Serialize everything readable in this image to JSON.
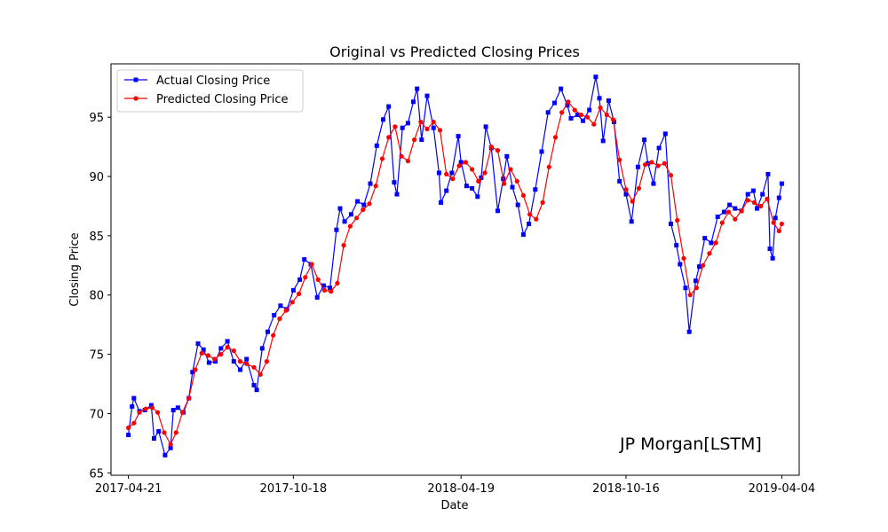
{
  "chart_data": {
    "type": "line",
    "title": "Original vs Predicted Closing Prices",
    "xlabel": "Date",
    "ylabel": "Closing Price",
    "x_range": [
      "2017-04-21",
      "2019-04-04"
    ],
    "xlim": [
      "2017-04-02",
      "2019-04-23"
    ],
    "ylim": [
      64.8,
      99.5
    ],
    "x_ticks": [
      "2017-04-21",
      "2017-10-18",
      "2018-04-19",
      "2018-10-16",
      "2019-04-04"
    ],
    "y_ticks": [
      65,
      70,
      75,
      80,
      85,
      90,
      95
    ],
    "legend": {
      "placement": "top-left"
    },
    "annotation": "JP Morgan[LSTM]",
    "grid": false,
    "series": [
      {
        "name": "Actual Closing Price",
        "color": "#0000ff",
        "marker": "square",
        "points": [
          [
            "2017-04-21",
            68.2
          ],
          [
            "2017-04-25",
            70.6
          ],
          [
            "2017-04-27",
            71.3
          ],
          [
            "2017-05-03",
            70.2
          ],
          [
            "2017-05-09",
            70.3
          ],
          [
            "2017-05-16",
            70.7
          ],
          [
            "2017-05-19",
            67.9
          ],
          [
            "2017-05-24",
            68.5
          ],
          [
            "2017-05-31",
            66.5
          ],
          [
            "2017-06-06",
            67.1
          ],
          [
            "2017-06-09",
            70.3
          ],
          [
            "2017-06-14",
            70.5
          ],
          [
            "2017-06-20",
            70.1
          ],
          [
            "2017-06-26",
            71.3
          ],
          [
            "2017-06-30",
            73.5
          ],
          [
            "2017-07-06",
            75.9
          ],
          [
            "2017-07-12",
            75.4
          ],
          [
            "2017-07-18",
            74.3
          ],
          [
            "2017-07-25",
            74.4
          ],
          [
            "2017-07-31",
            75.5
          ],
          [
            "2017-08-07",
            76.1
          ],
          [
            "2017-08-14",
            74.4
          ],
          [
            "2017-08-21",
            73.7
          ],
          [
            "2017-08-28",
            74.6
          ],
          [
            "2017-09-05",
            72.4
          ],
          [
            "2017-09-08",
            72.0
          ],
          [
            "2017-09-14",
            75.5
          ],
          [
            "2017-09-20",
            76.9
          ],
          [
            "2017-09-27",
            78.3
          ],
          [
            "2017-10-04",
            79.1
          ],
          [
            "2017-10-11",
            78.8
          ],
          [
            "2017-10-18",
            80.4
          ],
          [
            "2017-10-25",
            81.3
          ],
          [
            "2017-10-30",
            83.0
          ],
          [
            "2017-11-06",
            82.6
          ],
          [
            "2017-11-13",
            79.8
          ],
          [
            "2017-11-20",
            80.8
          ],
          [
            "2017-11-27",
            80.6
          ],
          [
            "2017-12-04",
            85.5
          ],
          [
            "2017-12-08",
            87.3
          ],
          [
            "2017-12-13",
            86.2
          ],
          [
            "2017-12-20",
            86.8
          ],
          [
            "2017-12-27",
            87.9
          ],
          [
            "2018-01-03",
            87.6
          ],
          [
            "2018-01-10",
            89.4
          ],
          [
            "2018-01-17",
            92.6
          ],
          [
            "2018-01-24",
            94.8
          ],
          [
            "2018-01-30",
            95.9
          ],
          [
            "2018-02-05",
            89.5
          ],
          [
            "2018-02-08",
            88.5
          ],
          [
            "2018-02-14",
            94.1
          ],
          [
            "2018-02-20",
            94.5
          ],
          [
            "2018-02-26",
            96.3
          ],
          [
            "2018-03-02",
            97.4
          ],
          [
            "2018-03-07",
            93.1
          ],
          [
            "2018-03-13",
            96.8
          ],
          [
            "2018-03-20",
            94.1
          ],
          [
            "2018-03-26",
            90.3
          ],
          [
            "2018-03-28",
            87.8
          ],
          [
            "2018-04-03",
            88.8
          ],
          [
            "2018-04-09",
            90.3
          ],
          [
            "2018-04-16",
            93.4
          ],
          [
            "2018-04-19",
            91.2
          ],
          [
            "2018-04-25",
            89.2
          ],
          [
            "2018-05-01",
            89.0
          ],
          [
            "2018-05-07",
            88.3
          ],
          [
            "2018-05-11",
            89.9
          ],
          [
            "2018-05-16",
            94.2
          ],
          [
            "2018-05-22",
            92.4
          ],
          [
            "2018-05-29",
            87.1
          ],
          [
            "2018-06-04",
            89.8
          ],
          [
            "2018-06-08",
            91.7
          ],
          [
            "2018-06-14",
            89.1
          ],
          [
            "2018-06-20",
            87.6
          ],
          [
            "2018-06-26",
            85.1
          ],
          [
            "2018-07-02",
            86.0
          ],
          [
            "2018-07-09",
            88.9
          ],
          [
            "2018-07-16",
            92.1
          ],
          [
            "2018-07-23",
            95.4
          ],
          [
            "2018-07-30",
            96.2
          ],
          [
            "2018-08-06",
            97.4
          ],
          [
            "2018-08-13",
            96.0
          ],
          [
            "2018-08-17",
            94.9
          ],
          [
            "2018-08-24",
            95.2
          ],
          [
            "2018-08-30",
            94.7
          ],
          [
            "2018-09-06",
            95.6
          ],
          [
            "2018-09-13",
            98.4
          ],
          [
            "2018-09-17",
            96.6
          ],
          [
            "2018-09-21",
            93.0
          ],
          [
            "2018-09-27",
            96.4
          ],
          [
            "2018-10-03",
            94.6
          ],
          [
            "2018-10-09",
            89.6
          ],
          [
            "2018-10-16",
            88.5
          ],
          [
            "2018-10-22",
            86.2
          ],
          [
            "2018-10-29",
            90.8
          ],
          [
            "2018-11-05",
            93.1
          ],
          [
            "2018-11-09",
            91.1
          ],
          [
            "2018-11-15",
            89.4
          ],
          [
            "2018-11-21",
            92.4
          ],
          [
            "2018-11-28",
            93.6
          ],
          [
            "2018-12-04",
            86.0
          ],
          [
            "2018-12-10",
            84.2
          ],
          [
            "2018-12-14",
            82.6
          ],
          [
            "2018-12-20",
            80.6
          ],
          [
            "2018-12-24",
            76.9
          ],
          [
            "2018-12-31",
            81.2
          ],
          [
            "2019-01-04",
            82.4
          ],
          [
            "2019-01-10",
            84.8
          ],
          [
            "2019-01-17",
            84.4
          ],
          [
            "2019-01-24",
            86.6
          ],
          [
            "2019-01-31",
            87.0
          ],
          [
            "2019-02-06",
            87.6
          ],
          [
            "2019-02-12",
            87.3
          ],
          [
            "2019-02-19",
            87.1
          ],
          [
            "2019-02-26",
            88.5
          ],
          [
            "2019-03-04",
            88.8
          ],
          [
            "2019-03-08",
            87.3
          ],
          [
            "2019-03-14",
            88.5
          ],
          [
            "2019-03-20",
            90.2
          ],
          [
            "2019-03-22",
            83.9
          ],
          [
            "2019-03-25",
            83.1
          ],
          [
            "2019-03-28",
            86.5
          ],
          [
            "2019-04-01",
            88.2
          ],
          [
            "2019-04-04",
            89.4
          ]
        ]
      },
      {
        "name": "Predicted Closing Price",
        "color": "#ff0000",
        "marker": "circle",
        "points": [
          [
            "2017-04-21",
            68.8
          ],
          [
            "2017-04-27",
            69.2
          ],
          [
            "2017-05-03",
            70.1
          ],
          [
            "2017-05-10",
            70.4
          ],
          [
            "2017-05-17",
            70.5
          ],
          [
            "2017-05-23",
            70.1
          ],
          [
            "2017-05-30",
            68.4
          ],
          [
            "2017-06-06",
            67.4
          ],
          [
            "2017-06-12",
            68.4
          ],
          [
            "2017-06-19",
            70.1
          ],
          [
            "2017-06-26",
            71.3
          ],
          [
            "2017-07-03",
            73.7
          ],
          [
            "2017-07-10",
            75.1
          ],
          [
            "2017-07-17",
            74.9
          ],
          [
            "2017-07-24",
            74.6
          ],
          [
            "2017-07-31",
            75.0
          ],
          [
            "2017-08-07",
            75.6
          ],
          [
            "2017-08-14",
            75.3
          ],
          [
            "2017-08-21",
            74.4
          ],
          [
            "2017-08-28",
            74.2
          ],
          [
            "2017-09-05",
            73.9
          ],
          [
            "2017-09-12",
            73.3
          ],
          [
            "2017-09-19",
            74.4
          ],
          [
            "2017-09-26",
            76.6
          ],
          [
            "2017-10-03",
            78.0
          ],
          [
            "2017-10-10",
            78.7
          ],
          [
            "2017-10-17",
            79.4
          ],
          [
            "2017-10-24",
            80.1
          ],
          [
            "2017-10-31",
            81.5
          ],
          [
            "2017-11-07",
            82.6
          ],
          [
            "2017-11-14",
            81.3
          ],
          [
            "2017-11-21",
            80.4
          ],
          [
            "2017-11-28",
            80.3
          ],
          [
            "2017-12-05",
            81.0
          ],
          [
            "2017-12-12",
            84.2
          ],
          [
            "2017-12-19",
            85.8
          ],
          [
            "2017-12-26",
            86.5
          ],
          [
            "2018-01-02",
            87.2
          ],
          [
            "2018-01-09",
            87.7
          ],
          [
            "2018-01-16",
            89.2
          ],
          [
            "2018-01-23",
            91.5
          ],
          [
            "2018-01-30",
            93.3
          ],
          [
            "2018-02-06",
            94.2
          ],
          [
            "2018-02-13",
            91.7
          ],
          [
            "2018-02-20",
            91.3
          ],
          [
            "2018-02-27",
            93.1
          ],
          [
            "2018-03-06",
            94.6
          ],
          [
            "2018-03-13",
            94.0
          ],
          [
            "2018-03-20",
            94.6
          ],
          [
            "2018-03-27",
            93.9
          ],
          [
            "2018-04-03",
            90.2
          ],
          [
            "2018-04-10",
            89.8
          ],
          [
            "2018-04-17",
            90.9
          ],
          [
            "2018-04-24",
            91.2
          ],
          [
            "2018-05-01",
            90.6
          ],
          [
            "2018-05-08",
            89.6
          ],
          [
            "2018-05-15",
            90.3
          ],
          [
            "2018-05-22",
            92.5
          ],
          [
            "2018-05-29",
            92.2
          ],
          [
            "2018-06-05",
            89.4
          ],
          [
            "2018-06-12",
            90.6
          ],
          [
            "2018-06-19",
            89.6
          ],
          [
            "2018-06-26",
            88.4
          ],
          [
            "2018-07-03",
            86.8
          ],
          [
            "2018-07-10",
            86.4
          ],
          [
            "2018-07-17",
            87.8
          ],
          [
            "2018-07-24",
            90.8
          ],
          [
            "2018-07-31",
            93.3
          ],
          [
            "2018-08-07",
            95.4
          ],
          [
            "2018-08-14",
            96.3
          ],
          [
            "2018-08-21",
            95.6
          ],
          [
            "2018-08-28",
            95.2
          ],
          [
            "2018-09-04",
            95.0
          ],
          [
            "2018-09-11",
            94.4
          ],
          [
            "2018-09-18",
            95.8
          ],
          [
            "2018-09-25",
            95.2
          ],
          [
            "2018-10-02",
            94.8
          ],
          [
            "2018-10-09",
            91.4
          ],
          [
            "2018-10-16",
            88.9
          ],
          [
            "2018-10-23",
            87.9
          ],
          [
            "2018-10-30",
            89.0
          ],
          [
            "2018-11-06",
            91.0
          ],
          [
            "2018-11-13",
            91.2
          ],
          [
            "2018-11-20",
            90.9
          ],
          [
            "2018-11-27",
            91.1
          ],
          [
            "2018-12-04",
            90.1
          ],
          [
            "2018-12-11",
            86.3
          ],
          [
            "2018-12-18",
            83.1
          ],
          [
            "2018-12-25",
            80.0
          ],
          [
            "2019-01-01",
            80.6
          ],
          [
            "2019-01-08",
            82.5
          ],
          [
            "2019-01-15",
            83.5
          ],
          [
            "2019-01-22",
            84.4
          ],
          [
            "2019-01-29",
            86.1
          ],
          [
            "2019-02-05",
            87.0
          ],
          [
            "2019-02-12",
            86.4
          ],
          [
            "2019-02-19",
            87.1
          ],
          [
            "2019-02-26",
            88.0
          ],
          [
            "2019-03-05",
            87.8
          ],
          [
            "2019-03-12",
            87.5
          ],
          [
            "2019-03-19",
            88.1
          ],
          [
            "2019-03-26",
            86.1
          ],
          [
            "2019-04-01",
            85.4
          ],
          [
            "2019-04-04",
            86.0
          ]
        ]
      }
    ]
  }
}
